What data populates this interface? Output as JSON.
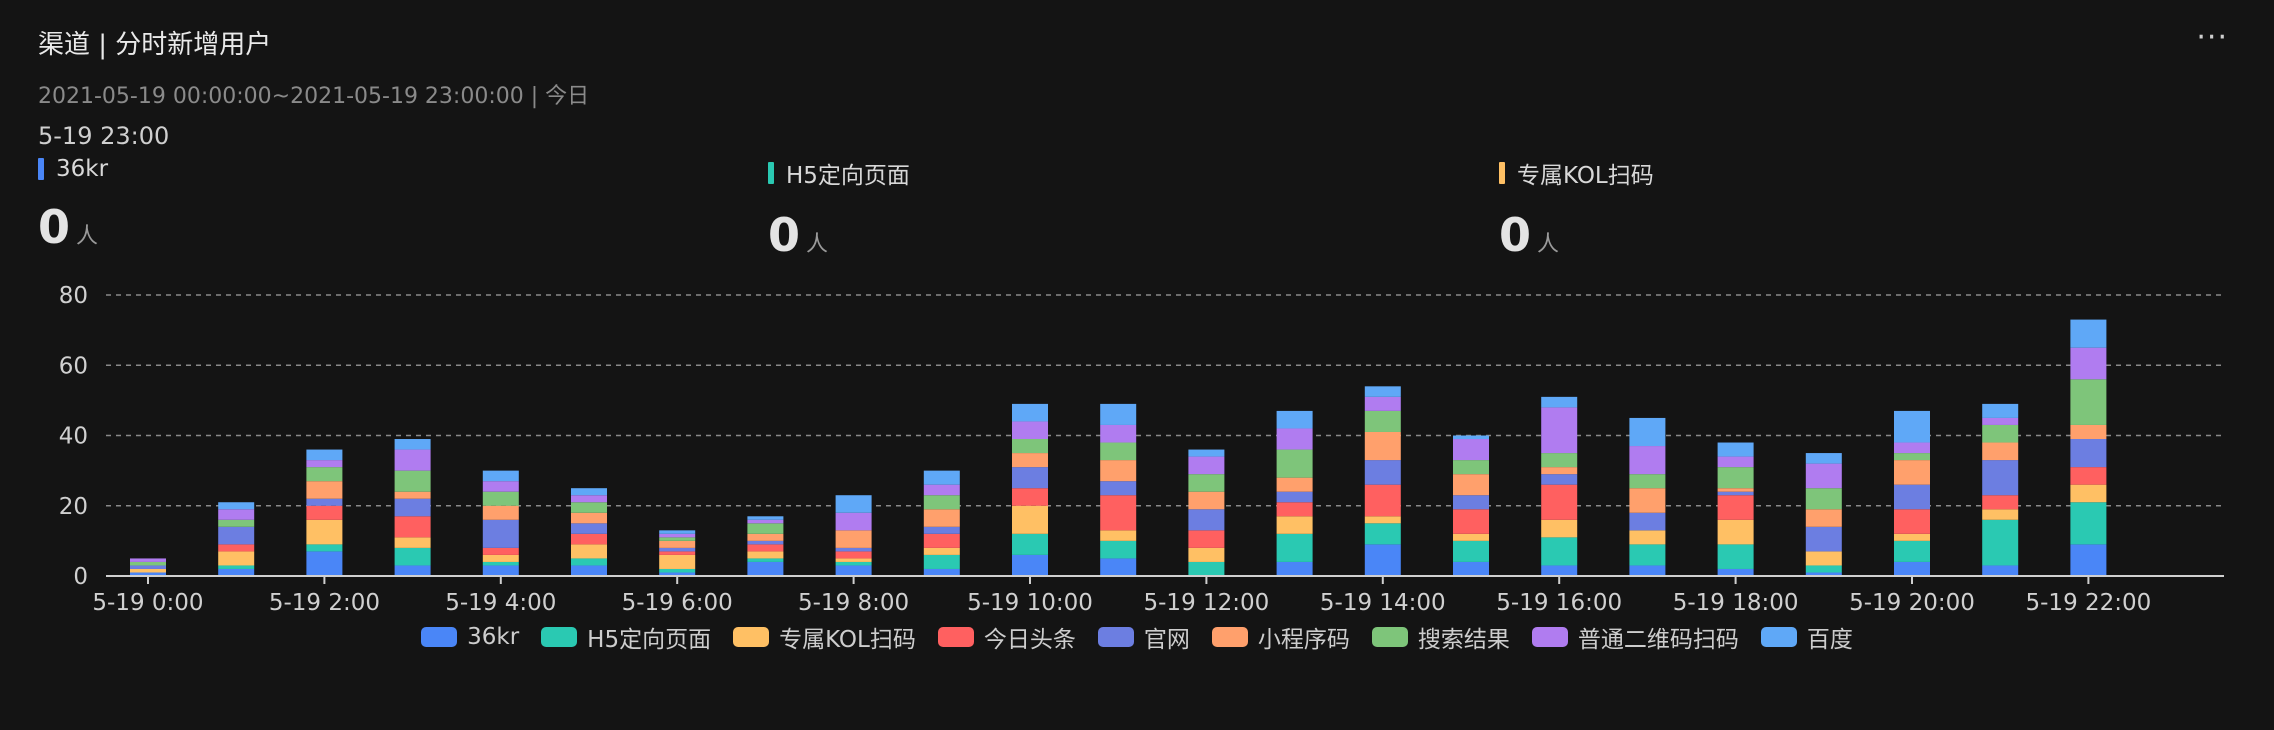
{
  "header": {
    "title": "渠道 | 分时新增用户",
    "range": "2021-05-19 00:00:00~2021-05-19 23:00:00 | 今日",
    "timepoint": "5-19 23:00",
    "more_label": "···"
  },
  "metrics": [
    {
      "label": "36kr",
      "value": "0",
      "unit": "人",
      "color": "#4a86f7"
    },
    {
      "label": "H5定向页面",
      "value": "0",
      "unit": "人",
      "color": "#2ac9b2"
    },
    {
      "label": "专属KOL扫码",
      "value": "0",
      "unit": "人",
      "color": "#ffc064"
    }
  ],
  "chart_data": {
    "type": "bar",
    "stacked": true,
    "categories": [
      "5-19 0:00",
      "5-19 1:00",
      "5-19 2:00",
      "5-19 3:00",
      "5-19 4:00",
      "5-19 5:00",
      "5-19 6:00",
      "5-19 7:00",
      "5-19 8:00",
      "5-19 9:00",
      "5-19 10:00",
      "5-19 11:00",
      "5-19 12:00",
      "5-19 13:00",
      "5-19 14:00",
      "5-19 15:00",
      "5-19 16:00",
      "5-19 17:00",
      "5-19 18:00",
      "5-19 19:00",
      "5-19 20:00",
      "5-19 21:00",
      "5-19 22:00"
    ],
    "tick_labels": [
      "5-19 0:00",
      "5-19 2:00",
      "5-19 4:00",
      "5-19 6:00",
      "5-19 8:00",
      "5-19 10:00",
      "5-19 12:00",
      "5-19 14:00",
      "5-19 16:00",
      "5-19 18:00",
      "5-19 20:00",
      "5-19 22:00"
    ],
    "y_ticks": [
      "0",
      "20",
      "40",
      "60",
      "80"
    ],
    "ylim": [
      0,
      80
    ],
    "grid": true,
    "legend_position": "bottom",
    "series": [
      {
        "name": "36kr",
        "color": "#4a86f7",
        "values": [
          1,
          2,
          7,
          3,
          3,
          3,
          1,
          4,
          3,
          2,
          6,
          5,
          0,
          4,
          9,
          4,
          3,
          3,
          2,
          1,
          4,
          3,
          9
        ]
      },
      {
        "name": "H5定向页面",
        "color": "#2ac9b2",
        "values": [
          0,
          1,
          2,
          5,
          1,
          2,
          1,
          1,
          1,
          4,
          6,
          5,
          4,
          8,
          6,
          6,
          8,
          6,
          7,
          2,
          6,
          13,
          12
        ]
      },
      {
        "name": "专属KOL扫码",
        "color": "#ffc064",
        "values": [
          1,
          4,
          7,
          3,
          2,
          4,
          4,
          2,
          1,
          2,
          8,
          3,
          4,
          5,
          2,
          2,
          5,
          4,
          7,
          4,
          2,
          3,
          5
        ]
      },
      {
        "name": "今日头条",
        "color": "#ff6060",
        "values": [
          0,
          2,
          4,
          6,
          2,
          3,
          1,
          2,
          2,
          4,
          5,
          10,
          5,
          4,
          9,
          7,
          10,
          0,
          7,
          0,
          7,
          4,
          5
        ]
      },
      {
        "name": "官网",
        "color": "#6c7ee1",
        "values": [
          1,
          5,
          2,
          5,
          8,
          3,
          1,
          1,
          1,
          2,
          6,
          4,
          6,
          3,
          7,
          4,
          3,
          5,
          1,
          7,
          7,
          10,
          8
        ]
      },
      {
        "name": "小程序码",
        "color": "#ffa06c",
        "values": [
          0,
          0,
          5,
          2,
          4,
          3,
          2,
          2,
          5,
          5,
          4,
          6,
          5,
          4,
          8,
          6,
          2,
          7,
          1,
          5,
          7,
          5,
          4
        ]
      },
      {
        "name": "搜索结果",
        "color": "#7ec57a",
        "values": [
          1,
          2,
          4,
          6,
          4,
          3,
          1,
          3,
          0,
          4,
          4,
          5,
          5,
          8,
          6,
          4,
          4,
          4,
          6,
          6,
          2,
          5,
          13
        ]
      },
      {
        "name": "普通二维码扫码",
        "color": "#b07cf0",
        "values": [
          1,
          3,
          2,
          6,
          3,
          2,
          1,
          1,
          5,
          3,
          5,
          5,
          5,
          6,
          4,
          6,
          13,
          8,
          3,
          7,
          3,
          2,
          9
        ]
      },
      {
        "name": "百度",
        "color": "#5fa8f7",
        "values": [
          0,
          2,
          3,
          3,
          3,
          2,
          1,
          1,
          5,
          4,
          5,
          6,
          2,
          5,
          3,
          1,
          3,
          8,
          4,
          3,
          9,
          4,
          8
        ]
      }
    ]
  }
}
